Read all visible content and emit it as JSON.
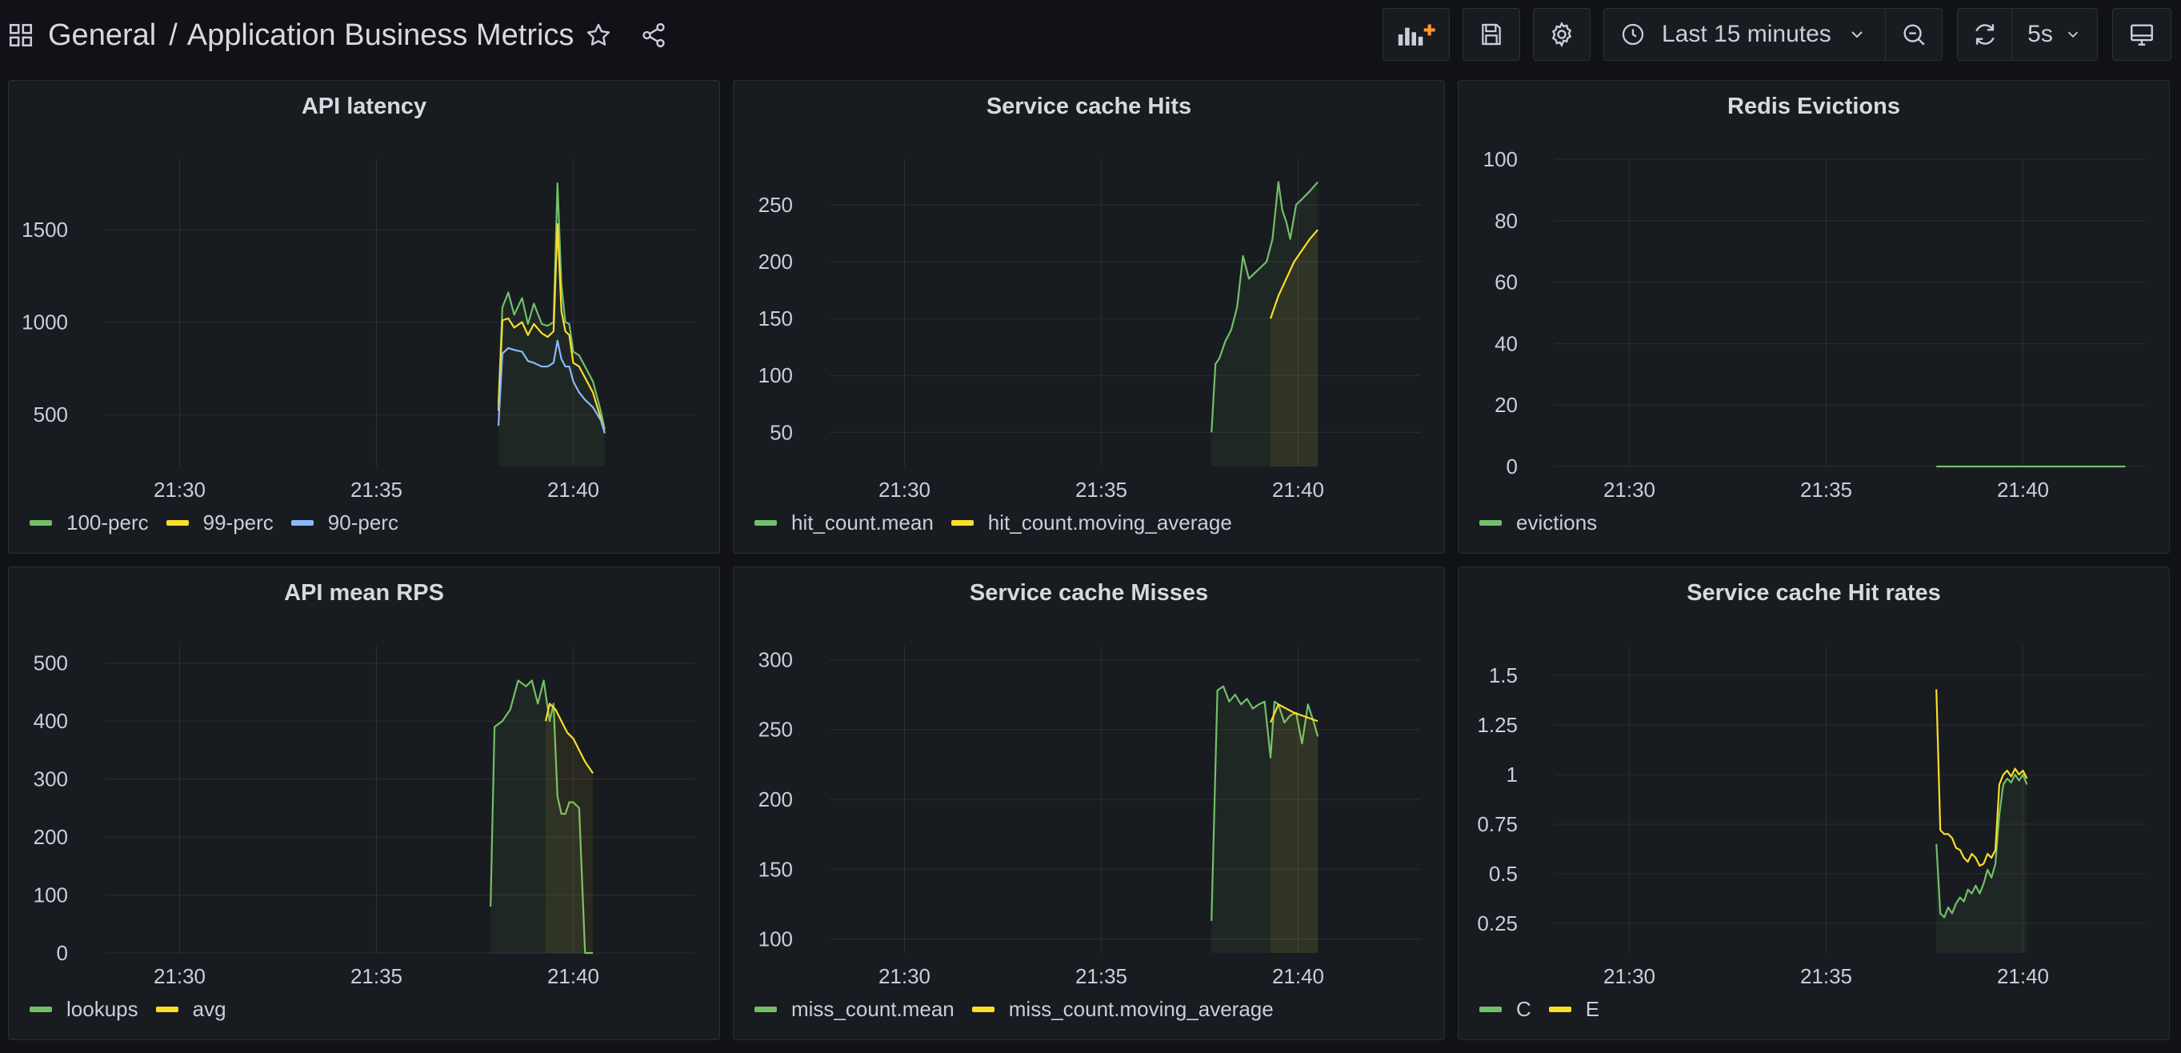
{
  "header": {
    "breadcrumb_root": "General",
    "breadcrumb_sep": "/",
    "dashboard_title": "Application Business Metrics",
    "time_range": "Last 15 minutes",
    "refresh_interval": "5s",
    "icons": {
      "apps": "grid-icon",
      "star": "star-icon",
      "share": "share-icon",
      "add_panel": "add-panel-icon",
      "save": "save-icon",
      "settings": "gear-icon",
      "clock": "clock-icon",
      "chevron": "chevron-down-icon",
      "zoom_out": "zoom-out-icon",
      "refresh": "refresh-icon",
      "tv": "tv-mode-icon"
    }
  },
  "colors": {
    "green": "#73bf69",
    "yellow": "#fade2a",
    "blue": "#8ab8ff",
    "grid": "#2c2e33",
    "axis_text": "#ccccdc"
  },
  "panels": [
    {
      "title": "API latency",
      "chart_data": {
        "type": "line",
        "title": "API latency",
        "xlabel": "",
        "ylabel": "",
        "xticks": [
          "21:30",
          "21:35",
          "21:40"
        ],
        "xlim": [
          28.1,
          43.1
        ],
        "ylim": [
          220,
          1880
        ],
        "yticks": [
          500,
          1000,
          1500
        ],
        "ytick_labels": [
          "500",
          "1000",
          "1500"
        ],
        "legend": "bottom-left",
        "series": [
          {
            "name": "100-perc",
            "color": "#73bf69",
            "fill": true,
            "x": [
              38.1,
              38.2,
              38.35,
              38.5,
              38.7,
              38.85,
              39.0,
              39.2,
              39.35,
              39.5,
              39.6,
              39.7,
              39.8,
              39.9,
              40.0,
              40.15,
              40.3,
              40.5,
              40.7,
              40.8
            ],
            "y": [
              560,
              1080,
              1160,
              1040,
              1130,
              990,
              1100,
              990,
              980,
              1000,
              1750,
              1200,
              1000,
              990,
              840,
              820,
              760,
              680,
              520,
              420
            ]
          },
          {
            "name": "99-perc",
            "color": "#fade2a",
            "fill": false,
            "x": [
              38.1,
              38.2,
              38.35,
              38.5,
              38.7,
              38.85,
              39.0,
              39.2,
              39.35,
              39.5,
              39.6,
              39.7,
              39.8,
              39.9,
              40.0,
              40.15,
              40.3,
              40.5,
              40.7,
              40.8
            ],
            "y": [
              520,
              1010,
              1020,
              970,
              1000,
              930,
              990,
              940,
              920,
              950,
              1530,
              1060,
              950,
              930,
              780,
              760,
              700,
              620,
              480,
              400
            ]
          },
          {
            "name": "90-perc",
            "color": "#8ab8ff",
            "fill": false,
            "x": [
              38.1,
              38.2,
              38.35,
              38.5,
              38.7,
              38.85,
              39.0,
              39.2,
              39.35,
              39.5,
              39.6,
              39.7,
              39.8,
              39.9,
              40.0,
              40.15,
              40.3,
              40.5,
              40.7,
              40.8
            ],
            "y": [
              440,
              830,
              860,
              850,
              840,
              790,
              780,
              760,
              760,
              780,
              900,
              800,
              760,
              760,
              680,
              620,
              580,
              540,
              470,
              400
            ]
          }
        ]
      }
    },
    {
      "title": "Service cache Hits",
      "chart_data": {
        "type": "line",
        "title": "Service cache Hits",
        "xlabel": "",
        "ylabel": "",
        "xticks": [
          "21:30",
          "21:35",
          "21:40"
        ],
        "xlim": [
          28.1,
          43.1
        ],
        "ylim": [
          20,
          290
        ],
        "yticks": [
          50,
          100,
          150,
          200,
          250
        ],
        "ytick_labels": [
          "50",
          "100",
          "150",
          "200",
          "250"
        ],
        "legend": "bottom-left",
        "series": [
          {
            "name": "hit_count.mean",
            "color": "#73bf69",
            "fill": true,
            "x": [
              37.8,
              37.9,
              38.0,
              38.15,
              38.3,
              38.45,
              38.6,
              38.75,
              38.9,
              39.05,
              39.2,
              39.35,
              39.5,
              39.6,
              39.7,
              39.8,
              39.95,
              40.1,
              40.3,
              40.5
            ],
            "y": [
              50,
              110,
              115,
              130,
              140,
              160,
              205,
              185,
              190,
              195,
              200,
              220,
              270,
              245,
              235,
              220,
              250,
              255,
              262,
              270
            ]
          },
          {
            "name": "hit_count.moving_average",
            "color": "#fade2a",
            "fill": true,
            "x": [
              39.3,
              39.5,
              39.7,
              39.9,
              40.1,
              40.3,
              40.5
            ],
            "y": [
              150,
              170,
              185,
              200,
              210,
              220,
              228
            ]
          }
        ]
      }
    },
    {
      "title": "Redis Evictions",
      "chart_data": {
        "type": "line",
        "title": "Redis Evictions",
        "xlabel": "",
        "ylabel": "",
        "xticks": [
          "21:30",
          "21:35",
          "21:40"
        ],
        "xlim": [
          28.1,
          43.1
        ],
        "ylim": [
          0,
          100
        ],
        "yticks": [
          0,
          20,
          40,
          60,
          80,
          100
        ],
        "ytick_labels": [
          "0",
          "20",
          "40",
          "60",
          "80",
          "100"
        ],
        "legend": "bottom-left",
        "series": [
          {
            "name": "evictions",
            "color": "#73bf69",
            "fill": false,
            "x": [
              37.8,
              42.6
            ],
            "y": [
              0,
              0
            ]
          }
        ]
      }
    },
    {
      "title": "API mean RPS",
      "chart_data": {
        "type": "line",
        "title": "API mean RPS",
        "xlabel": "",
        "ylabel": "",
        "xticks": [
          "21:30",
          "21:35",
          "21:40"
        ],
        "xlim": [
          28.1,
          43.1
        ],
        "ylim": [
          0,
          530
        ],
        "yticks": [
          0,
          100,
          200,
          300,
          400,
          500
        ],
        "ytick_labels": [
          "0",
          "100",
          "200",
          "300",
          "400",
          "500"
        ],
        "legend": "bottom-left",
        "series": [
          {
            "name": "lookups",
            "color": "#73bf69",
            "fill": true,
            "x": [
              37.9,
              38.0,
              38.2,
              38.4,
              38.6,
              38.8,
              38.95,
              39.1,
              39.25,
              39.4,
              39.5,
              39.6,
              39.7,
              39.8,
              39.9,
              40.0,
              40.15,
              40.3,
              40.4,
              40.5
            ],
            "y": [
              80,
              390,
              400,
              420,
              470,
              460,
              470,
              430,
              470,
              400,
              430,
              270,
              240,
              240,
              260,
              260,
              250,
              0,
              0,
              0
            ]
          },
          {
            "name": "avg",
            "color": "#fade2a",
            "fill": true,
            "x": [
              39.3,
              39.4,
              39.55,
              39.7,
              39.85,
              40.0,
              40.15,
              40.3,
              40.5
            ],
            "y": [
              400,
              430,
              420,
              400,
              380,
              370,
              350,
              330,
              310
            ]
          }
        ]
      }
    },
    {
      "title": "Service cache Misses",
      "chart_data": {
        "type": "line",
        "title": "Service cache Misses",
        "xlabel": "",
        "ylabel": "",
        "xticks": [
          "21:30",
          "21:35",
          "21:40"
        ],
        "xlim": [
          28.1,
          43.1
        ],
        "ylim": [
          90,
          310
        ],
        "yticks": [
          100,
          150,
          200,
          250,
          300
        ],
        "ytick_labels": [
          "100",
          "150",
          "200",
          "250",
          "300"
        ],
        "legend": "bottom-left",
        "series": [
          {
            "name": "miss_count.mean",
            "color": "#73bf69",
            "fill": true,
            "x": [
              37.8,
              37.95,
              38.1,
              38.25,
              38.4,
              38.55,
              38.7,
              38.85,
              39.0,
              39.15,
              39.3,
              39.4,
              39.5,
              39.65,
              39.8,
              39.95,
              40.1,
              40.25,
              40.4,
              40.5
            ],
            "y": [
              113,
              278,
              281,
              270,
              275,
              268,
              272,
              265,
              268,
              270,
              230,
              270,
              268,
              255,
              260,
              262,
              240,
              268,
              255,
              245
            ]
          },
          {
            "name": "miss_count.moving_average",
            "color": "#fade2a",
            "fill": true,
            "x": [
              39.3,
              39.5,
              39.7,
              39.9,
              40.1,
              40.3,
              40.5
            ],
            "y": [
              255,
              268,
              265,
              262,
              260,
              258,
              256
            ]
          }
        ]
      }
    },
    {
      "title": "Service cache Hit rates",
      "chart_data": {
        "type": "line",
        "title": "Service cache Hit rates",
        "xlabel": "",
        "ylabel": "",
        "xticks": [
          "21:30",
          "21:35",
          "21:40"
        ],
        "xlim": [
          28.1,
          43.1
        ],
        "ylim": [
          0.1,
          1.65
        ],
        "yticks": [
          0.25,
          0.5,
          0.75,
          1,
          1.25,
          1.5
        ],
        "ytick_labels": [
          "0.25",
          "0.5",
          "0.75",
          "1",
          "1.25",
          "1.5"
        ],
        "legend": "bottom-left",
        "series": [
          {
            "name": "C",
            "color": "#73bf69",
            "fill": true,
            "x": [
              37.8,
              37.9,
              38.0,
              38.1,
              38.2,
              38.3,
              38.4,
              38.5,
              38.6,
              38.7,
              38.8,
              38.9,
              39.0,
              39.1,
              39.2,
              39.3,
              39.4,
              39.5,
              39.6,
              39.7,
              39.8,
              39.9,
              40.0,
              40.1
            ],
            "y": [
              0.65,
              0.3,
              0.28,
              0.33,
              0.3,
              0.35,
              0.38,
              0.36,
              0.42,
              0.4,
              0.44,
              0.4,
              0.45,
              0.52,
              0.48,
              0.55,
              0.8,
              0.95,
              0.98,
              0.96,
              1.0,
              0.97,
              1.0,
              0.95
            ]
          },
          {
            "name": "E",
            "color": "#fade2a",
            "fill": false,
            "x": [
              37.8,
              37.9,
              38.0,
              38.1,
              38.2,
              38.3,
              38.4,
              38.5,
              38.6,
              38.7,
              38.8,
              38.9,
              39.0,
              39.1,
              39.2,
              39.3,
              39.4,
              39.5,
              39.6,
              39.7,
              39.8,
              39.9,
              40.0,
              40.1
            ],
            "y": [
              1.43,
              0.72,
              0.7,
              0.7,
              0.68,
              0.63,
              0.62,
              0.58,
              0.56,
              0.6,
              0.58,
              0.54,
              0.55,
              0.6,
              0.58,
              0.62,
              0.95,
              1.0,
              1.02,
              0.99,
              1.03,
              1.0,
              1.02,
              0.98
            ]
          }
        ]
      }
    }
  ]
}
